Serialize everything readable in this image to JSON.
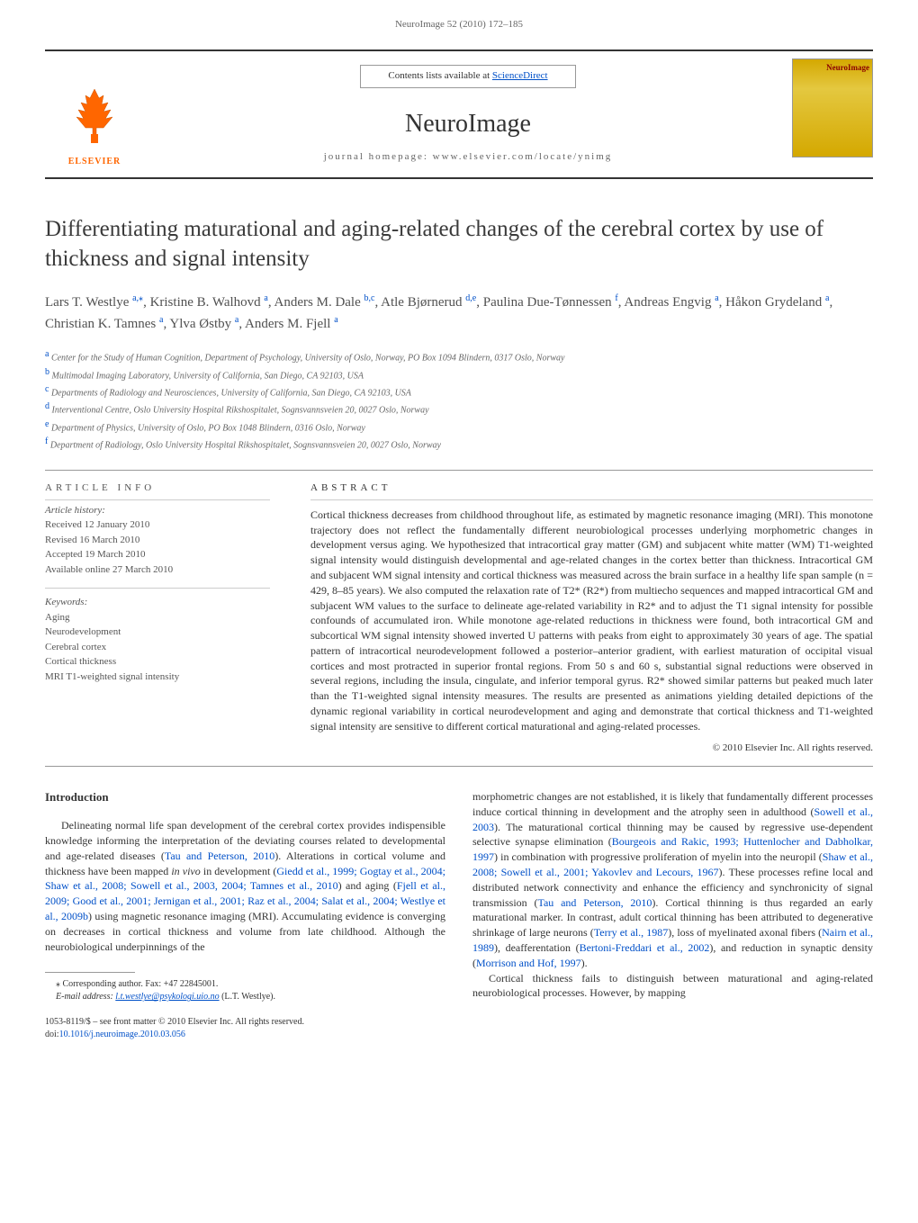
{
  "running_header": "NeuroImage 52 (2010) 172–185",
  "banner": {
    "contents_text": "Contents lists available at ",
    "contents_link": "ScienceDirect",
    "journal_name": "NeuroImage",
    "homepage_prefix": "journal homepage: ",
    "homepage": "www.elsevier.com/locate/ynimg",
    "elsevier": "ELSEVIER",
    "cover_title": "NeuroImage"
  },
  "title": "Differentiating maturational and aging-related changes of the cerebral cortex by use of thickness and signal intensity",
  "authors_html": "Lars T. Westlye <sup>a,⁎</sup>, Kristine B. Walhovd <sup>a</sup>, Anders M. Dale <sup>b,c</sup>, Atle Bjørnerud <sup>d,e</sup>, Paulina Due-Tønnessen <sup>f</sup>, Andreas Engvig <sup>a</sup>, Håkon Grydeland <sup>a</sup>, Christian K. Tamnes <sup>a</sup>, Ylva Østby <sup>a</sup>, Anders M. Fjell <sup>a</sup>",
  "affiliations": [
    {
      "sup": "a",
      "text": "Center for the Study of Human Cognition, Department of Psychology, University of Oslo, Norway, PO Box 1094 Blindern, 0317 Oslo, Norway"
    },
    {
      "sup": "b",
      "text": "Multimodal Imaging Laboratory, University of California, San Diego, CA 92103, USA"
    },
    {
      "sup": "c",
      "text": "Departments of Radiology and Neurosciences, University of California, San Diego, CA 92103, USA"
    },
    {
      "sup": "d",
      "text": "Interventional Centre, Oslo University Hospital Rikshospitalet, Sognsvannsveien 20, 0027 Oslo, Norway"
    },
    {
      "sup": "e",
      "text": "Department of Physics, University of Oslo, PO Box 1048 Blindern, 0316 Oslo, Norway"
    },
    {
      "sup": "f",
      "text": "Department of Radiology, Oslo University Hospital Rikshospitalet, Sognsvannsveien 20, 0027 Oslo, Norway"
    }
  ],
  "info": {
    "heading": "ARTICLE INFO",
    "history_label": "Article history:",
    "dates": [
      "Received 12 January 2010",
      "Revised 16 March 2010",
      "Accepted 19 March 2010",
      "Available online 27 March 2010"
    ],
    "keywords_label": "Keywords:",
    "keywords": [
      "Aging",
      "Neurodevelopment",
      "Cerebral cortex",
      "Cortical thickness",
      "MRI T1-weighted signal intensity"
    ]
  },
  "abstract": {
    "heading": "ABSTRACT",
    "text": "Cortical thickness decreases from childhood throughout life, as estimated by magnetic resonance imaging (MRI). This monotone trajectory does not reflect the fundamentally different neurobiological processes underlying morphometric changes in development versus aging. We hypothesized that intracortical gray matter (GM) and subjacent white matter (WM) T1-weighted signal intensity would distinguish developmental and age-related changes in the cortex better than thickness. Intracortical GM and subjacent WM signal intensity and cortical thickness was measured across the brain surface in a healthy life span sample (n = 429, 8–85 years). We also computed the relaxation rate of T2* (R2*) from multiecho sequences and mapped intracortical GM and subjacent WM values to the surface to delineate age-related variability in R2* and to adjust the T1 signal intensity for possible confounds of accumulated iron. While monotone age-related reductions in thickness were found, both intracortical GM and subcortical WM signal intensity showed inverted U patterns with peaks from eight to approximately 30 years of age. The spatial pattern of intracortical neurodevelopment followed a posterior–anterior gradient, with earliest maturation of occipital visual cortices and most protracted in superior frontal regions. From 50 s and 60 s, substantial signal reductions were observed in several regions, including the insula, cingulate, and inferior temporal gyrus. R2* showed similar patterns but peaked much later than the T1-weighted signal intensity measures. The results are presented as animations yielding detailed depictions of the dynamic regional variability in cortical neurodevelopment and aging and demonstrate that cortical thickness and T1-weighted signal intensity are sensitive to different cortical maturational and aging-related processes.",
    "copyright": "© 2010 Elsevier Inc. All rights reserved."
  },
  "body": {
    "heading": "Introduction",
    "col1_p1": "Delineating normal life span development of the cerebral cortex provides indispensible knowledge informing the interpretation of the deviating courses related to developmental and age-related diseases (Tau and Peterson, 2010). Alterations in cortical volume and thickness have been mapped in vivo in development (Giedd et al., 1999; Gogtay et al., 2004; Shaw et al., 2008; Sowell et al., 2003, 2004; Tamnes et al., 2010) and aging (Fjell et al., 2009; Good et al., 2001; Jernigan et al., 2001; Raz et al., 2004; Salat et al., 2004; Westlye et al., 2009b) using magnetic resonance imaging (MRI). Accumulating evidence is converging on decreases in cortical thickness and volume from late childhood. Although the neurobiological underpinnings of the",
    "col2_p1": "morphometric changes are not established, it is likely that fundamentally different processes induce cortical thinning in development and the atrophy seen in adulthood (Sowell et al., 2003). The maturational cortical thinning may be caused by regressive use-dependent selective synapse elimination (Bourgeois and Rakic, 1993; Huttenlocher and Dabholkar, 1997) in combination with progressive proliferation of myelin into the neuropil (Shaw et al., 2008; Sowell et al., 2001; Yakovlev and Lecours, 1967). These processes refine local and distributed network connectivity and enhance the efficiency and synchronicity of signal transmission (Tau and Peterson, 2010). Cortical thinning is thus regarded an early maturational marker. In contrast, adult cortical thinning has been attributed to degenerative shrinkage of large neurons (Terry et al., 1987), loss of myelinated axonal fibers (Nairn et al., 1989), deafferentation (Bertoni-Freddari et al., 2002), and reduction in synaptic density (Morrison and Hof, 1997).",
    "col2_p2": "Cortical thickness fails to distinguish between maturational and aging-related neurobiological processes. However, by mapping"
  },
  "footnote": {
    "corr": "⁎ Corresponding author. Fax: +47 22845001.",
    "email_label": "E-mail address: ",
    "email": "l.t.westlye@psykologi.uio.no",
    "email_suffix": " (L.T. Westlye)."
  },
  "bottom": {
    "issn": "1053-8119/$ – see front matter © 2010 Elsevier Inc. All rights reserved.",
    "doi_prefix": "doi:",
    "doi": "10.1016/j.neuroimage.2010.03.056"
  },
  "colors": {
    "link": "#0050c8",
    "elsevier_orange": "#ff6600",
    "cover_red": "#8b0000"
  }
}
